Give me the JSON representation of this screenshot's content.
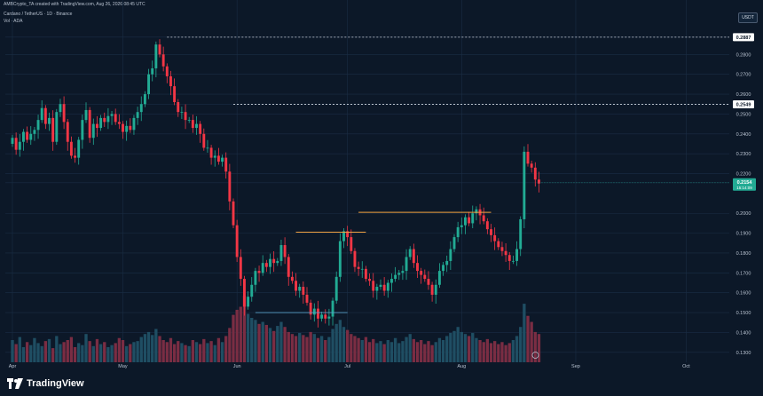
{
  "header": {
    "credit": "AMBCrypto_TA created with TradingView.com, Aug 26, 2026 08:45 UTC",
    "symbol": "Cardano / TetherUS · 1D · Binance",
    "vol_label": "Vol · ADA",
    "currency": "USDT"
  },
  "footer": {
    "brand": "TradingView"
  },
  "colors": {
    "background": "#0c1828",
    "grid": "#1a2d44",
    "up": "#22ab94",
    "down": "#f23645",
    "up_volume": "#1f4e63",
    "down_volume": "#7a2d43",
    "orange_line": "#f0a040",
    "price_badge": "#22ab94",
    "resistance_badge": "#ffffff"
  },
  "chart_data": {
    "type": "candlestick",
    "x_axis": {
      "ticks": [
        "Apr",
        "May",
        "Jun",
        "Jul",
        "Aug",
        "Sep",
        "Oct"
      ],
      "tick_days": [
        0,
        30,
        61,
        91,
        122,
        153,
        183
      ]
    },
    "y_axis": {
      "ticks": [
        "0.2887",
        "0.2800",
        "0.2700",
        "0.2600",
        "0.2549",
        "0.2500",
        "0.2400",
        "0.2300",
        "0.2200",
        "0.2154",
        "0.2000",
        "0.1900",
        "0.1800",
        "0.1700",
        "0.1600",
        "0.1500",
        "0.1400",
        "0.1300"
      ],
      "range": [
        0.125,
        0.294
      ],
      "log": false
    },
    "last_price": {
      "value": 0.2154,
      "label": "0.2154",
      "countdown": "15:14:09"
    },
    "levels": [
      {
        "name": "high",
        "value": 0.2887,
        "label": "0.2887",
        "style": "dotted"
      },
      {
        "name": "resistance",
        "value": 0.2549,
        "label": "0.2549",
        "style": "dotted"
      }
    ],
    "trend_lines": [
      {
        "price": 0.1905,
        "start_day": 77,
        "end_day": 96
      },
      {
        "price": 0.2005,
        "start_day": 94,
        "end_day": 130
      },
      {
        "price": 0.15,
        "start_day": 66,
        "end_day": 91
      }
    ],
    "closes": [
      0.238,
      0.232,
      0.236,
      0.241,
      0.237,
      0.24,
      0.242,
      0.247,
      0.253,
      0.245,
      0.248,
      0.236,
      0.251,
      0.255,
      0.246,
      0.236,
      0.229,
      0.228,
      0.237,
      0.247,
      0.252,
      0.238,
      0.245,
      0.243,
      0.248,
      0.246,
      0.249,
      0.25,
      0.246,
      0.245,
      0.241,
      0.244,
      0.242,
      0.248,
      0.251,
      0.255,
      0.26,
      0.27,
      0.273,
      0.285,
      0.28,
      0.274,
      0.269,
      0.264,
      0.256,
      0.251,
      0.251,
      0.247,
      0.247,
      0.243,
      0.245,
      0.24,
      0.233,
      0.233,
      0.228,
      0.229,
      0.226,
      0.228,
      0.221,
      0.206,
      0.194,
      0.178,
      0.167,
      0.153,
      0.158,
      0.164,
      0.171,
      0.17,
      0.175,
      0.173,
      0.177,
      0.175,
      0.176,
      0.184,
      0.178,
      0.168,
      0.166,
      0.161,
      0.163,
      0.159,
      0.155,
      0.149,
      0.152,
      0.147,
      0.149,
      0.147,
      0.148,
      0.156,
      0.168,
      0.186,
      0.191,
      0.188,
      0.181,
      0.173,
      0.172,
      0.172,
      0.167,
      0.166,
      0.161,
      0.163,
      0.164,
      0.161,
      0.165,
      0.167,
      0.169,
      0.17,
      0.171,
      0.178,
      0.182,
      0.175,
      0.171,
      0.169,
      0.167,
      0.164,
      0.159,
      0.164,
      0.171,
      0.174,
      0.176,
      0.182,
      0.188,
      0.193,
      0.194,
      0.198,
      0.195,
      0.2,
      0.202,
      0.199,
      0.196,
      0.192,
      0.189,
      0.186,
      0.183,
      0.181,
      0.179,
      0.176,
      0.176,
      0.182,
      0.197,
      0.231,
      0.225,
      0.223,
      0.217,
      0.215
    ],
    "volumes": [
      22,
      18,
      25,
      15,
      20,
      17,
      24,
      19,
      16,
      21,
      23,
      14,
      26,
      18,
      20,
      22,
      25,
      15,
      19,
      17,
      28,
      21,
      16,
      23,
      18,
      20,
      15,
      17,
      19,
      24,
      22,
      16,
      18,
      20,
      21,
      25,
      28,
      30,
      27,
      33,
      26,
      22,
      20,
      24,
      18,
      21,
      19,
      17,
      16,
      22,
      20,
      18,
      23,
      19,
      21,
      17,
      24,
      20,
      26,
      34,
      47,
      52,
      55,
      66,
      48,
      44,
      42,
      38,
      40,
      37,
      34,
      31,
      36,
      40,
      35,
      30,
      28,
      26,
      29,
      27,
      25,
      30,
      28,
      24,
      26,
      22,
      25,
      33,
      38,
      42,
      35,
      32,
      28,
      26,
      24,
      22,
      25,
      20,
      23,
      19,
      21,
      18,
      22,
      20,
      24,
      19,
      21,
      25,
      28,
      23,
      20,
      22,
      18,
      21,
      17,
      20,
      24,
      22,
      26,
      29,
      31,
      35,
      30,
      28,
      26,
      29,
      24,
      22,
      20,
      23,
      19,
      21,
      18,
      20,
      17,
      19,
      22,
      26,
      35,
      58,
      46,
      40,
      30,
      28
    ]
  }
}
